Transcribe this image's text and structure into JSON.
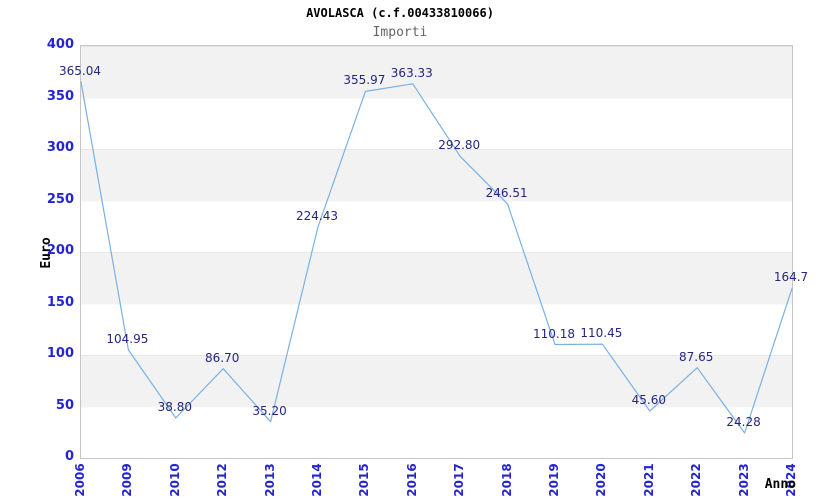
{
  "title": "AVOLASCA (c.f.00433810066)",
  "subtitle": "Importi",
  "colors": {
    "line": "#7ab1e3",
    "axis_tick_label": "#2525cf",
    "data_label": "#26267c",
    "band_gray": "#f2f2f2",
    "band_white": "#ffffff",
    "plot_border": "#c6c6c6",
    "title": "#000000",
    "subtitle": "#666666"
  },
  "chart_data": {
    "type": "line",
    "title": "AVOLASCA (c.f.00433810066)",
    "subtitle": "Importi",
    "xlabel": "Anno",
    "ylabel": "Euro",
    "x": [
      "2006",
      "2009",
      "2010",
      "2012",
      "2013",
      "2014",
      "2015",
      "2016",
      "2017",
      "2018",
      "2019",
      "2020",
      "2021",
      "2022",
      "2023",
      "2024"
    ],
    "values": [
      365.04,
      104.95,
      38.8,
      86.7,
      35.2,
      224.43,
      355.97,
      363.33,
      292.8,
      246.51,
      110.18,
      110.45,
      45.6,
      87.65,
      24.28,
      164.7
    ],
    "point_labels": [
      "365.04",
      "104.95",
      "38.80",
      "86.70",
      "35.20",
      "224.43",
      "355.97",
      "363.33",
      "292.80",
      "246.51",
      "110.18",
      "110.45",
      "45.60",
      "87.65",
      "24.28",
      "164.7"
    ],
    "ylim": [
      0,
      400
    ],
    "yticks": [
      0,
      50,
      100,
      150,
      200,
      250,
      300,
      350,
      400
    ],
    "grid": "alternating-horizontal-bands",
    "legend": "none",
    "x_tick_rotation": -90
  }
}
